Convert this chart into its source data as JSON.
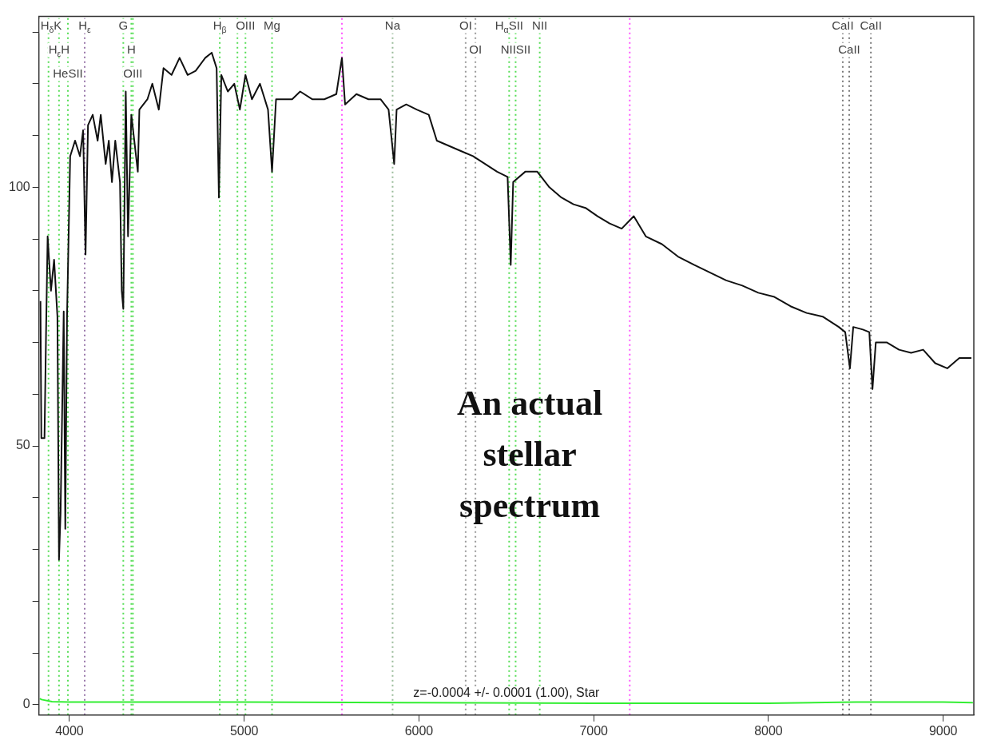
{
  "chart_data": {
    "type": "line",
    "xlim": [
      3825,
      9175
    ],
    "ylim": [
      -2,
      133
    ],
    "xticks": [
      4000,
      5000,
      6000,
      7000,
      8000,
      9000
    ],
    "yticks": [
      0,
      {
        "value": 10,
        "label": null
      },
      {
        "value": 20,
        "label": null
      },
      {
        "value": 30,
        "label": null
      },
      {
        "value": 40,
        "label": null
      },
      50,
      {
        "value": 60,
        "label": null
      },
      {
        "value": 70,
        "label": null
      },
      {
        "value": 80,
        "label": null
      },
      {
        "value": 90,
        "label": null
      },
      100,
      {
        "value": 110,
        "label": null
      },
      {
        "value": 120,
        "label": null
      },
      {
        "value": 130,
        "label": null
      }
    ],
    "grid": false,
    "legend": false,
    "marker": "none",
    "line_style": "solid",
    "series": [
      {
        "color": "#111111",
        "x": [
          3834,
          3839,
          3857,
          3866,
          3875,
          3894,
          3912,
          3931,
          3940,
          3949,
          3967,
          3976,
          3986,
          4004,
          4032,
          4060,
          4078,
          4092,
          4106,
          4133,
          4161,
          4179,
          4207,
          4225,
          4243,
          4262,
          4289,
          4299,
          4308,
          4322,
          4335,
          4354,
          4391,
          4400,
          4446,
          4474,
          4511,
          4538,
          4584,
          4630,
          4676,
          4722,
          4777,
          4814,
          4842,
          4855,
          4869,
          4906,
          4943,
          4975,
          5007,
          5044,
          5090,
          5136,
          5159,
          5182,
          5228,
          5274,
          5320,
          5389,
          5458,
          5527,
          5559,
          5577,
          5642,
          5711,
          5780,
          5826,
          5858,
          5872,
          5927,
          5987,
          6056,
          6102,
          6171,
          6240,
          6309,
          6378,
          6447,
          6507,
          6525,
          6539,
          6608,
          6677,
          6746,
          6815,
          6884,
          6953,
          7022,
          7091,
          7160,
          7229,
          7298,
          7390,
          7482,
          7574,
          7666,
          7758,
          7850,
          7942,
          8034,
          8126,
          8218,
          8310,
          8402,
          8439,
          8466,
          8485,
          8540,
          8577,
          8595,
          8614,
          8678,
          8747,
          8816,
          8885,
          8954,
          9023,
          9092,
          9161
        ],
        "values": [
          78,
          51.5,
          51.5,
          72,
          90.5,
          80,
          86,
          75,
          28,
          37,
          76,
          34,
          75,
          106,
          109,
          106,
          111,
          87,
          112,
          114,
          109,
          114,
          104.5,
          109,
          101,
          109,
          101,
          80,
          76.5,
          118.5,
          90.5,
          114,
          103,
          115,
          117,
          120,
          115,
          123,
          121.7,
          125,
          121.7,
          122.5,
          125,
          126,
          123,
          98,
          121.7,
          118.5,
          120,
          115,
          121.7,
          117,
          120,
          115,
          103,
          117,
          117,
          117,
          118.5,
          117,
          117,
          118,
          125,
          116,
          118,
          117,
          117,
          115,
          104.5,
          115,
          116,
          115,
          114,
          109,
          108,
          107,
          106,
          104.5,
          103,
          102,
          85,
          101,
          103,
          103,
          100,
          98,
          96.7,
          96,
          94.4,
          93,
          92,
          94.4,
          90.5,
          89,
          86.6,
          85,
          83.5,
          82,
          81,
          79.6,
          78.8,
          77,
          75.7,
          75,
          73,
          72,
          65,
          73,
          72.5,
          72,
          61,
          70,
          70,
          68.6,
          68,
          68.6,
          66,
          65,
          67,
          67
        ]
      },
      {
        "color": "#33ee33",
        "x": [
          3830,
          3840,
          3900,
          4000,
          5000,
          6000,
          7000,
          8000,
          8500,
          9000,
          9170
        ],
        "values": [
          1.2,
          1,
          0.6,
          0.5,
          0.5,
          0.4,
          0.3,
          0.3,
          0.5,
          0.5,
          0.4
        ]
      }
    ],
    "ref_lines": [
      {
        "axis": "x",
        "value": 3880,
        "color": "#55dd55",
        "line_style": "dotted",
        "label": "H$_{δ}$K"
      },
      {
        "axis": "x",
        "value": 3940,
        "color": "#55dd55",
        "line_style": "dotted",
        "label": "H$_{ε}$H"
      },
      {
        "axis": "x",
        "value": 3991,
        "color": "#55dd55",
        "line_style": "dotted",
        "label": "HeSII"
      },
      {
        "axis": "x",
        "value": 4087,
        "color": "#9977aa",
        "line_style": "dotted",
        "label": "H$_{ε}$"
      },
      {
        "axis": "x",
        "value": 4308,
        "color": "#55dd55",
        "line_style": "dotted",
        "label": "G"
      },
      {
        "axis": "x",
        "value": 4354,
        "color": "#55dd55",
        "line_style": "dotted",
        "label": "H"
      },
      {
        "axis": "x",
        "value": 4363,
        "color": "#55dd55",
        "line_style": "dotted",
        "label": "OIII"
      },
      {
        "axis": "x",
        "value": 4860,
        "color": "#55dd55",
        "line_style": "dotted",
        "label": "H$_{β}$"
      },
      {
        "axis": "x",
        "value": 4961,
        "color": "#55dd55",
        "line_style": "dotted"
      },
      {
        "axis": "x",
        "value": 5007,
        "color": "#55dd55",
        "line_style": "dotted",
        "label": "OIII"
      },
      {
        "axis": "x",
        "value": 5159,
        "color": "#55dd55",
        "line_style": "dotted",
        "label": "Mg"
      },
      {
        "axis": "x",
        "value": 5559,
        "color": "#ff55ff",
        "line_style": "dotted"
      },
      {
        "axis": "x",
        "value": 5849,
        "color": "#99bb99",
        "line_style": "dotted",
        "label": "Na"
      },
      {
        "axis": "x",
        "value": 6267,
        "color": "#999999",
        "line_style": "dotted",
        "label": "OI"
      },
      {
        "axis": "x",
        "value": 6323,
        "color": "#999999",
        "line_style": "dotted",
        "label": "OI"
      },
      {
        "axis": "x",
        "value": 6516,
        "color": "#55dd55",
        "line_style": "dotted",
        "label": "H$_{α}$SII"
      },
      {
        "axis": "x",
        "value": 6553,
        "color": "#55dd55",
        "line_style": "dotted",
        "label": "NIISII"
      },
      {
        "axis": "x",
        "value": 6691,
        "color": "#55dd55",
        "line_style": "dotted",
        "label": "NII"
      },
      {
        "axis": "x",
        "value": 7206,
        "color": "#ff55ff",
        "line_style": "dotted"
      },
      {
        "axis": "x",
        "value": 8425,
        "color": "#777777",
        "line_style": "dotted",
        "label": "CaII"
      },
      {
        "axis": "x",
        "value": 8462,
        "color": "#777777",
        "line_style": "dotted",
        "label": "CaII"
      },
      {
        "axis": "x",
        "value": 8586,
        "color": "#777777",
        "line_style": "dotted",
        "label": "CaII"
      }
    ],
    "annotations": [
      "An actual stellar spectrum",
      "z=-0.0004 +/- 0.0001 (1.00), Star"
    ]
  }
}
